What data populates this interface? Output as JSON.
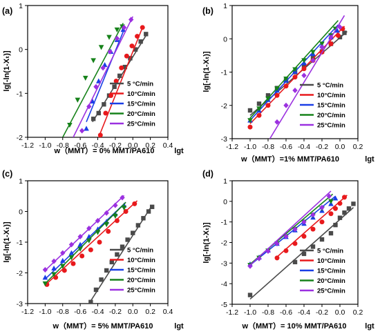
{
  "colors": {
    "5 °C/min": "#4a4a4a",
    "10°C/min": "#e8191c",
    "15°C/min": "#1a3ee6",
    "20°C/min": "#16821a",
    "25°C/min": "#9b30e0"
  },
  "chart_data": [
    {
      "type": "scatter",
      "panel_label": "(a)",
      "caption": "w（MMT）= 0% MMT/PA610",
      "xlabel": "lgt",
      "ylabel": "lg[-ln(1-Xₜ)]",
      "xlim": [
        -1.2,
        0.4
      ],
      "ylim": [
        -2,
        1
      ],
      "xticks": [
        "-1.2",
        "-1.0",
        "-0.8",
        "-0.6",
        "-0.4",
        "-0.2",
        "0.0",
        "0.2",
        "0.4"
      ],
      "yticks": [
        "-2",
        "-1",
        "0",
        "1"
      ],
      "legend_position": "lower-right",
      "series": [
        {
          "name": "5 °C/min",
          "marker": "square",
          "x": [
            -0.45,
            -0.39,
            -0.33,
            -0.27,
            -0.21,
            -0.15,
            -0.09,
            -0.03,
            0.03,
            0.09,
            0.15
          ],
          "y": [
            -1.58,
            -1.45,
            -1.25,
            -1.05,
            -0.85,
            -0.6,
            -0.4,
            -0.2,
            0.0,
            0.18,
            0.35
          ],
          "fit": [
            [
              -0.46,
              -1.65
            ],
            [
              0.17,
              0.38
            ]
          ]
        },
        {
          "name": "10°C/min",
          "marker": "circle",
          "x": [
            -0.37,
            -0.31,
            -0.25,
            -0.19,
            -0.13,
            -0.07,
            -0.01,
            0.05,
            0.11
          ],
          "y": [
            -1.95,
            -1.45,
            -1.05,
            -0.72,
            -0.42,
            -0.15,
            0.08,
            0.3,
            0.5
          ],
          "fit": [
            [
              -0.4,
              -2.05
            ],
            [
              0.12,
              0.55
            ]
          ]
        },
        {
          "name": "15°C/min",
          "marker": "triangle-up",
          "x": [
            -0.53,
            -0.46,
            -0.39,
            -0.32,
            -0.25,
            -0.18,
            -0.11
          ],
          "y": [
            -1.8,
            -1.18,
            -0.72,
            -0.35,
            -0.05,
            0.22,
            0.45
          ],
          "fit": [
            [
              -0.53,
              -1.65
            ],
            [
              -0.09,
              0.5
            ]
          ]
        },
        {
          "name": "20°C/min",
          "marker": "triangle-down",
          "x": [
            -0.72,
            -0.63,
            -0.54,
            -0.45,
            -0.36,
            -0.27,
            -0.18,
            -0.12
          ],
          "y": [
            -1.72,
            -1.15,
            -0.65,
            -0.25,
            0.05,
            0.28,
            0.45,
            0.52
          ],
          "fit": [
            [
              -0.8,
              -2.0
            ],
            [
              -0.11,
              0.6
            ]
          ]
        },
        {
          "name": "25°C/min",
          "marker": "diamond",
          "x": [
            -0.58,
            -0.5,
            -0.42,
            -0.34,
            -0.26,
            -0.18,
            -0.1,
            -0.02
          ],
          "y": [
            -1.85,
            -1.3,
            -0.85,
            -0.42,
            -0.05,
            0.25,
            0.5,
            0.68
          ],
          "fit": [
            [
              -0.68,
              -2.0
            ],
            [
              0.0,
              0.75
            ]
          ]
        }
      ]
    },
    {
      "type": "scatter",
      "panel_label": "(b)",
      "caption": "w（MMT）=1% MMT/PA610",
      "xlabel": "lgt",
      "ylabel": "lg[-ln(1-Xₜ)]",
      "xlim": [
        -1.2,
        0.2
      ],
      "ylim": [
        -3,
        1
      ],
      "xticks": [
        "-1.2",
        "-1.0",
        "-0.8",
        "-0.6",
        "-0.4",
        "-0.2",
        "0.0",
        "0.2"
      ],
      "yticks": [
        "-3",
        "-2",
        "-1",
        "0",
        "1"
      ],
      "legend_position": "lower-right",
      "series": [
        {
          "name": "5 °C/min",
          "marker": "square",
          "x": [
            -1.0,
            -0.9,
            -0.8,
            -0.7,
            -0.6,
            -0.5,
            -0.4,
            -0.3,
            -0.2,
            -0.1,
            0.0,
            0.05
          ],
          "y": [
            -2.15,
            -1.95,
            -1.7,
            -1.48,
            -1.25,
            -1.0,
            -0.8,
            -0.58,
            -0.38,
            -0.15,
            0.05,
            0.18
          ],
          "fit": [
            [
              -1.0,
              -2.3
            ],
            [
              0.08,
              0.22
            ]
          ]
        },
        {
          "name": "10°C/min",
          "marker": "circle",
          "x": [
            -1.0,
            -0.9,
            -0.8,
            -0.7,
            -0.6,
            -0.5,
            -0.4,
            -0.3,
            -0.2,
            -0.1,
            -0.02,
            0.03
          ],
          "y": [
            -2.65,
            -2.3,
            -2.0,
            -1.7,
            -1.42,
            -1.15,
            -0.9,
            -0.65,
            -0.4,
            -0.15,
            0.1,
            0.3
          ],
          "fit": [
            [
              -1.0,
              -2.55
            ],
            [
              0.05,
              0.38
            ]
          ]
        },
        {
          "name": "15°C/min",
          "marker": "triangle-up",
          "x": [
            -1.0,
            -0.9,
            -0.8,
            -0.7,
            -0.6,
            -0.5,
            -0.4,
            -0.3,
            -0.2,
            -0.1,
            -0.03
          ],
          "y": [
            -2.45,
            -2.15,
            -1.83,
            -1.55,
            -1.25,
            -0.98,
            -0.72,
            -0.45,
            -0.2,
            0.05,
            0.25
          ],
          "fit": [
            [
              -1.0,
              -2.45
            ],
            [
              -0.02,
              0.42
            ]
          ]
        },
        {
          "name": "20°C/min",
          "marker": "triangle-down",
          "x": [
            -1.0,
            -0.9,
            -0.8,
            -0.7,
            -0.6,
            -0.5,
            -0.4,
            -0.3,
            -0.2,
            -0.1,
            -0.05
          ],
          "y": [
            -2.45,
            -2.1,
            -1.8,
            -1.5,
            -1.2,
            -0.92,
            -0.65,
            -0.4,
            -0.15,
            0.1,
            0.3
          ],
          "fit": [
            [
              -1.0,
              -2.38
            ],
            [
              -0.02,
              0.55
            ]
          ]
        },
        {
          "name": "25°C/min",
          "marker": "diamond",
          "x": [
            -0.7,
            -0.6,
            -0.5,
            -0.4,
            -0.3,
            -0.2,
            -0.1,
            0.0
          ],
          "y": [
            -2.5,
            -2.0,
            -1.55,
            -1.1,
            -0.65,
            -0.25,
            0.05,
            0.35
          ],
          "fit": [
            [
              -0.78,
              -3.0
            ],
            [
              0.05,
              0.7
            ]
          ]
        }
      ]
    },
    {
      "type": "scatter",
      "panel_label": "(c)",
      "caption": "w（MMT）= 5% MMT/PA610",
      "xlabel": "lgt",
      "ylabel": "lg[-ln(1-Xₜ)]",
      "xlim": [
        -1.2,
        0.4
      ],
      "ylim": [
        -3,
        1
      ],
      "xticks": [
        "-1.2",
        "-1.0",
        "-0.8",
        "-0.6",
        "-0.4",
        "-0.2",
        "0.0",
        "0.2",
        "0.4"
      ],
      "yticks": [
        "-3",
        "-2",
        "-1",
        "0",
        "1"
      ],
      "legend_position": "lower-right",
      "series": [
        {
          "name": "5 °C/min",
          "marker": "square",
          "x": [
            -0.48,
            -0.42,
            -0.36,
            -0.3,
            -0.24,
            -0.18,
            -0.12,
            -0.06,
            0.0,
            0.06,
            0.12,
            0.18,
            0.22
          ],
          "y": [
            -2.95,
            -2.55,
            -2.22,
            -1.92,
            -1.65,
            -1.4,
            -1.15,
            -0.92,
            -0.7,
            -0.45,
            -0.22,
            0.0,
            0.15
          ],
          "fit": [
            [
              -0.5,
              -3.0
            ],
            [
              0.22,
              0.2
            ]
          ]
        },
        {
          "name": "10°C/min",
          "marker": "circle",
          "x": [
            -0.98,
            -0.88,
            -0.78,
            -0.68,
            -0.58,
            -0.48,
            -0.38,
            -0.28,
            -0.18,
            -0.08,
            0.02
          ],
          "y": [
            -2.38,
            -2.15,
            -1.92,
            -1.7,
            -1.45,
            -1.25,
            -1.0,
            -0.65,
            -0.3,
            0.0,
            0.25
          ],
          "fit": [
            [
              -1.0,
              -2.4
            ],
            [
              0.05,
              0.35
            ]
          ]
        },
        {
          "name": "15°C/min",
          "marker": "triangle-up",
          "x": [
            -1.0,
            -0.9,
            -0.8,
            -0.7,
            -0.6,
            -0.5,
            -0.4,
            -0.3,
            -0.2,
            -0.1
          ],
          "y": [
            -2.15,
            -1.85,
            -1.6,
            -1.35,
            -1.08,
            -0.82,
            -0.58,
            -0.33,
            -0.08,
            0.2
          ],
          "fit": [
            [
              -1.0,
              -2.2
            ],
            [
              -0.08,
              0.3
            ]
          ]
        },
        {
          "name": "20°C/min",
          "marker": "triangle-down",
          "x": [
            -1.0,
            -0.9,
            -0.8,
            -0.7,
            -0.6,
            -0.5,
            -0.4,
            -0.3,
            -0.2,
            -0.1
          ],
          "y": [
            -2.35,
            -2.05,
            -1.78,
            -1.5,
            -1.22,
            -0.95,
            -0.68,
            -0.42,
            -0.15,
            0.12
          ],
          "fit": [
            [
              -1.0,
              -2.35
            ],
            [
              -0.08,
              0.3
            ]
          ]
        },
        {
          "name": "25°C/min",
          "marker": "diamond",
          "x": [
            -1.0,
            -0.9,
            -0.8,
            -0.7,
            -0.6,
            -0.5,
            -0.4,
            -0.3,
            -0.2,
            -0.12
          ],
          "y": [
            -1.9,
            -1.62,
            -1.35,
            -1.08,
            -0.82,
            -0.55,
            -0.3,
            -0.05,
            0.2,
            0.45
          ],
          "fit": [
            [
              -1.0,
              -1.92
            ],
            [
              -0.1,
              0.52
            ]
          ]
        }
      ]
    },
    {
      "type": "scatter",
      "panel_label": "(d)",
      "caption": "w（MMT）= 10% MMT/PA610",
      "xlabel": "lgt",
      "ylabel": "lg[-ln(1-Xₜ)]",
      "xlim": [
        -1.2,
        0.2
      ],
      "ylim": [
        -5,
        1
      ],
      "xticks": [
        "-1.2",
        "-1.0",
        "-0.8",
        "-0.6",
        "-0.4",
        "-0.2",
        "0.0",
        "0.2"
      ],
      "yticks": [
        "-5",
        "-4",
        "-3",
        "-2",
        "-1",
        "0",
        "1"
      ],
      "legend_position": "lower-right",
      "series": [
        {
          "name": "5 °C/min",
          "marker": "square",
          "x": [
            -1.0,
            -0.5,
            -0.4,
            -0.3,
            -0.2,
            -0.1,
            -0.05,
            0.0,
            0.05,
            0.1,
            0.15
          ],
          "y": [
            -4.55,
            -2.95,
            -2.55,
            -2.2,
            -1.85,
            -1.55,
            -1.15,
            -0.8,
            -0.55,
            -0.35,
            -0.12
          ],
          "fit": [
            [
              -1.0,
              -4.75
            ],
            [
              0.15,
              -0.3
            ]
          ]
        },
        {
          "name": "10°C/min",
          "marker": "circle",
          "x": [
            -0.7,
            -0.6,
            -0.5,
            -0.4,
            -0.3,
            -0.2,
            -0.1,
            -0.05,
            0.0,
            0.05
          ],
          "y": [
            -2.75,
            -2.4,
            -2.05,
            -1.7,
            -1.35,
            -1.0,
            -0.6,
            -0.35,
            -0.1,
            0.2
          ],
          "fit": [
            [
              -0.7,
              -2.7
            ],
            [
              0.08,
              0.3
            ]
          ]
        },
        {
          "name": "15°C/min",
          "marker": "triangle-up",
          "x": [
            -1.0,
            -0.9,
            -0.8,
            -0.7,
            -0.6,
            -0.5,
            -0.4,
            -0.3,
            -0.2,
            -0.1,
            -0.05
          ],
          "y": [
            -3.05,
            -2.72,
            -2.38,
            -2.05,
            -1.72,
            -1.4,
            -1.08,
            -0.78,
            -0.45,
            -0.12,
            0.15
          ],
          "fit": [
            [
              -1.0,
              -3.1
            ],
            [
              -0.05,
              0.25
            ]
          ]
        },
        {
          "name": "20°C/min",
          "marker": "triangle-down",
          "x": [
            -1.0,
            -0.9,
            -0.8,
            -0.7,
            -0.6,
            -0.5,
            -0.4,
            -0.3,
            -0.2,
            -0.1
          ],
          "y": [
            -3.1,
            -2.75,
            -2.4,
            -2.05,
            -1.7,
            -1.35,
            -1.0,
            -0.68,
            -0.35,
            0.0
          ],
          "fit": [
            [
              -1.0,
              -3.05
            ],
            [
              -0.08,
              0.35
            ]
          ]
        },
        {
          "name": "25°C/min",
          "marker": "diamond",
          "x": [
            -1.0,
            -0.9,
            -0.8,
            -0.7,
            -0.6,
            -0.5,
            -0.4,
            -0.3,
            -0.2,
            -0.12
          ],
          "y": [
            -3.15,
            -2.78,
            -2.42,
            -2.05,
            -1.7,
            -1.35,
            -1.0,
            -0.65,
            -0.3,
            0.25
          ],
          "fit": [
            [
              -1.0,
              -3.1
            ],
            [
              -0.1,
              0.5
            ]
          ]
        }
      ]
    }
  ]
}
